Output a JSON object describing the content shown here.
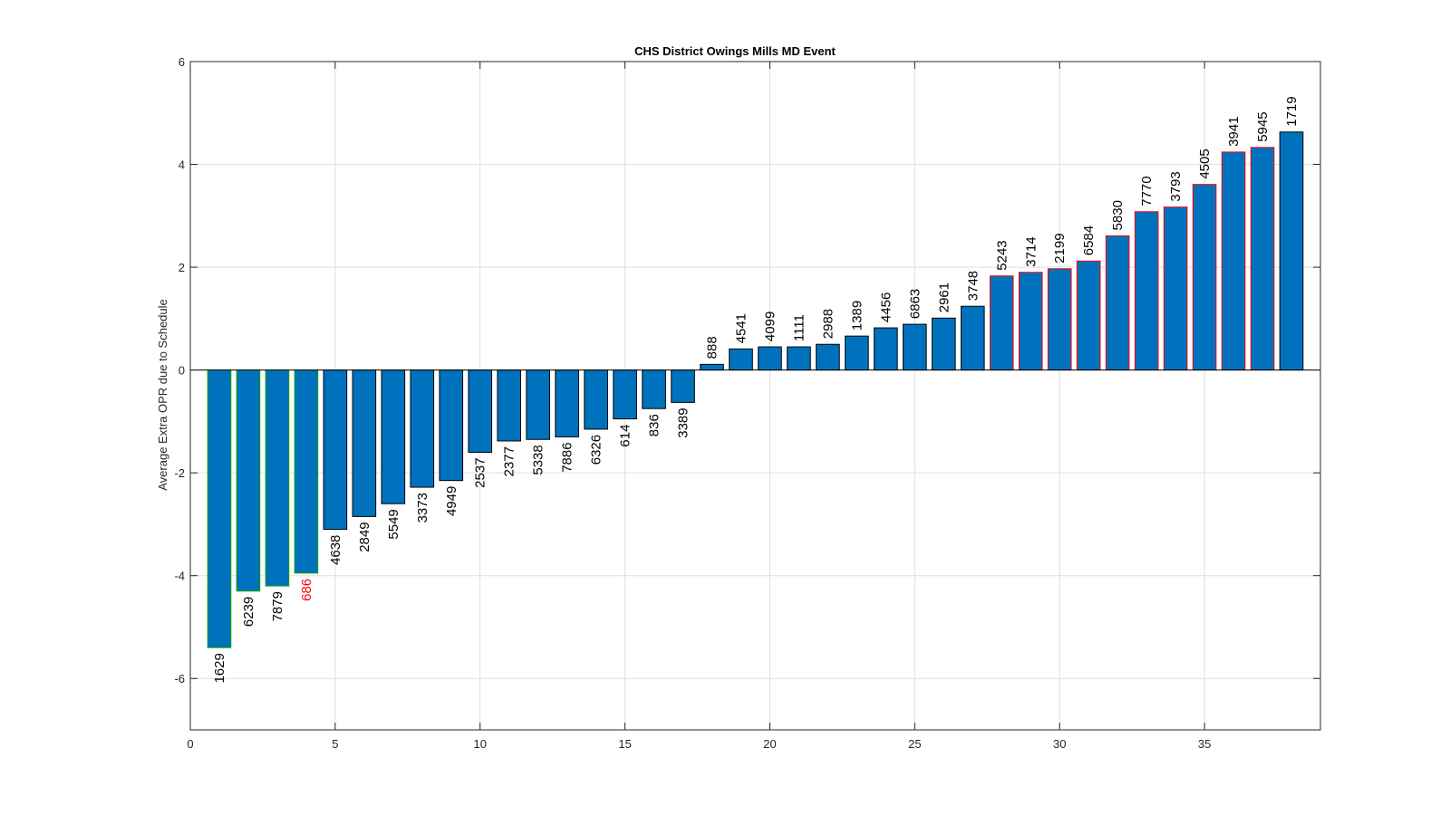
{
  "chart_data": {
    "type": "bar",
    "title": "CHS District Owings Mills MD Event",
    "xlabel": "",
    "ylabel": "Average Extra OPR due to Schedule",
    "xlim": [
      0,
      39
    ],
    "ylim": [
      -7,
      6
    ],
    "xticks": [
      0,
      5,
      10,
      15,
      20,
      25,
      30,
      35
    ],
    "yticks": [
      -6,
      -4,
      -2,
      0,
      2,
      4,
      6
    ],
    "grid": true,
    "bar_color": "#0072BD",
    "highlight_label_color": "#FF0000",
    "x": [
      1,
      2,
      3,
      4,
      5,
      6,
      7,
      8,
      9,
      10,
      11,
      12,
      13,
      14,
      15,
      16,
      17,
      18,
      19,
      20,
      21,
      22,
      23,
      24,
      25,
      26,
      27,
      28,
      29,
      30,
      31,
      32,
      33,
      34,
      35,
      36,
      37,
      38
    ],
    "values": [
      -5.4,
      -4.3,
      -4.2,
      -3.95,
      -3.1,
      -2.85,
      -2.6,
      -2.28,
      -2.15,
      -1.6,
      -1.38,
      -1.35,
      -1.3,
      -1.15,
      -0.95,
      -0.75,
      -0.63,
      0.11,
      0.41,
      0.45,
      0.45,
      0.5,
      0.66,
      0.82,
      0.89,
      1.01,
      1.24,
      1.83,
      1.9,
      1.97,
      2.12,
      2.61,
      3.08,
      3.17,
      3.61,
      4.24,
      4.33,
      4.63
    ],
    "labels": [
      "1629",
      "6239",
      "7879",
      "686",
      "4638",
      "2849",
      "5549",
      "3373",
      "4949",
      "2537",
      "2377",
      "5338",
      "7886",
      "6326",
      "614",
      "836",
      "3389",
      "888",
      "4541",
      "4099",
      "1111",
      "2988",
      "1389",
      "4456",
      "6863",
      "2961",
      "3748",
      "5243",
      "3714",
      "2199",
      "6584",
      "5830",
      "7770",
      "3793",
      "4505",
      "3941",
      "5945",
      "1719"
    ],
    "highlighted_labels": [
      "686"
    ],
    "bar_edge_colors": [
      "#00A000",
      "#00A000",
      "#00A000",
      "#00A000",
      "#000000",
      "#000000",
      "#000000",
      "#000000",
      "#000000",
      "#000000",
      "#000000",
      "#000000",
      "#000000",
      "#000000",
      "#000000",
      "#000000",
      "#000000",
      "#000000",
      "#000000",
      "#000000",
      "#000000",
      "#000000",
      "#000000",
      "#000000",
      "#000000",
      "#000000",
      "#000000",
      "#FF0000",
      "#FF0000",
      "#FF0000",
      "#FF0000",
      "#FF0000",
      "#FF0000",
      "#FF0000",
      "#FF0000",
      "#FF0000",
      "#FF0000",
      "#000000"
    ]
  }
}
